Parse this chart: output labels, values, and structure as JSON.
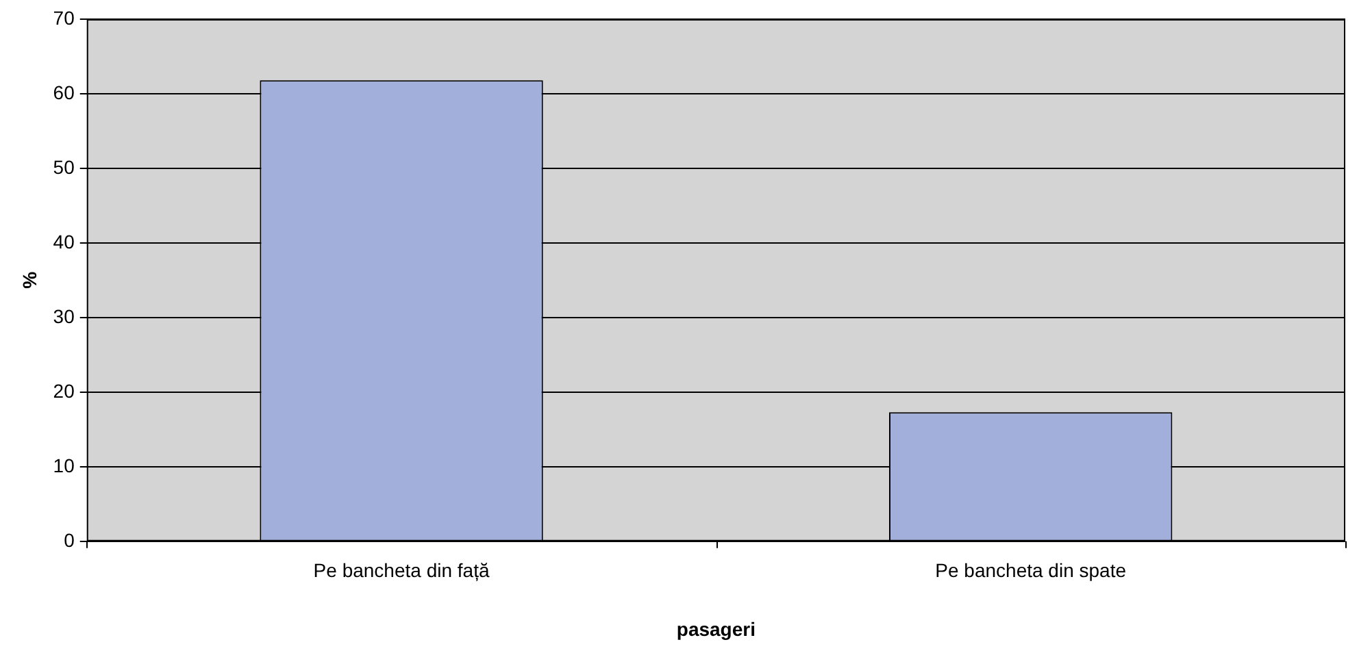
{
  "chart_data": {
    "type": "bar",
    "xlabel": "pasageri",
    "ylabel": "%",
    "categories": [
      "Pe bancheta din față",
      "Pe bancheta din spate"
    ],
    "values": [
      61.8,
      17.3
    ],
    "color": "#a2afdb",
    "ylim": [
      0,
      70
    ],
    "yticks": [
      0,
      10,
      20,
      30,
      40,
      50,
      60,
      70
    ],
    "grid": "y",
    "legend": false
  }
}
